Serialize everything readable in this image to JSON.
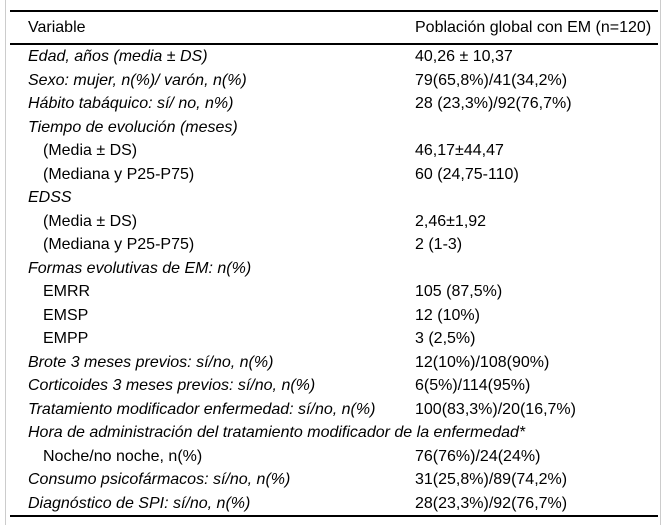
{
  "table": {
    "headers": {
      "variable": "Variable",
      "population": "Población global con EM (n=120)"
    },
    "rows": [
      {
        "label": "Edad, años (media ± DS)",
        "value": "40,26 ± 10,37",
        "style": "main"
      },
      {
        "label": "Sexo: mujer, n(%)/ varón, n(%)",
        "value": "79(65,8%)/41(34,2%)",
        "style": "main"
      },
      {
        "label": "Hábito tabáquico: sí/ no, n%)",
        "value": "28 (23,3%)/92(76,7%)",
        "style": "main"
      },
      {
        "label": "Tiempo de evolución (meses)",
        "value": "",
        "style": "main"
      },
      {
        "label": "(Media ± DS)",
        "value": "46,17±44,47",
        "style": "indent"
      },
      {
        "label": "(Mediana y P25-P75)",
        "value": "60 (24,75-110)",
        "style": "indent"
      },
      {
        "label": "EDSS",
        "value": "",
        "style": "main"
      },
      {
        "label": "(Media ± DS)",
        "value": "2,46±1,92",
        "style": "indent"
      },
      {
        "label": "(Mediana y P25-P75)",
        "value": "2 (1-3)",
        "style": "indent"
      },
      {
        "label": "Formas evolutivas de EM: n(%)",
        "value": "",
        "style": "main"
      },
      {
        "label": "EMRR",
        "value": "105 (87,5%)",
        "style": "indent"
      },
      {
        "label": "EMSP",
        "value": "12 (10%)",
        "style": "indent"
      },
      {
        "label": "EMPP",
        "value": "3 (2,5%)",
        "style": "indent"
      },
      {
        "label": "Brote 3 meses previos: sí/no, n(%)",
        "value": "12(10%)/108(90%)",
        "style": "main"
      },
      {
        "label": "Corticoides 3 meses previos: sí/no, n(%)",
        "value": "6(5%)/114(95%)",
        "style": "main"
      },
      {
        "label": "Tratamiento modificador enfermedad: sí/no, n(%)",
        "value": "100(83,3%)/20(16,7%)",
        "style": "main"
      },
      {
        "label": "Hora de administración del tratamiento modificador de la enfermedad*",
        "value": "",
        "style": "main",
        "span": true
      },
      {
        "label": "Noche/no noche, n(%)",
        "value": "76(76%)/24(24%)",
        "style": "indent"
      },
      {
        "label": "Consumo psicofármacos: sí/no, n(%)",
        "value": "31(25,8%)/89(74,2%)",
        "style": "main"
      },
      {
        "label": "Diagnóstico de SPI: sí/no, n(%)",
        "value": "28(23,3%)/92(76,7%)",
        "style": "main"
      }
    ]
  }
}
